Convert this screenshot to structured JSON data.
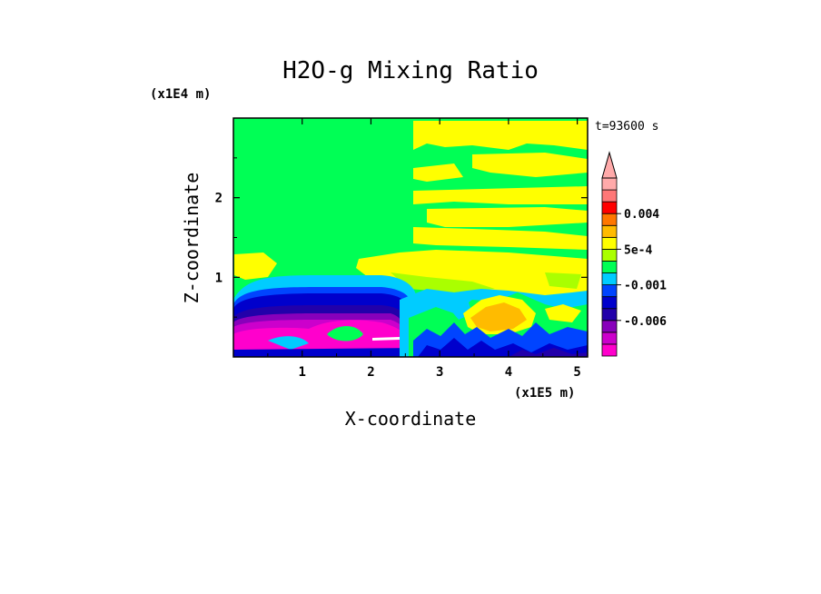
{
  "chart_data": {
    "type": "heatmap",
    "title": "H2O-g Mixing Ratio",
    "xlabel": "X-coordinate",
    "ylabel": "Z-coordinate",
    "x_scale_label": "(x1E5 m)",
    "y_scale_label": "(x1E4 m)",
    "time_label": "t=93600 s",
    "xlim": [
      0.0,
      5.15
    ],
    "ylim": [
      0.0,
      3.0
    ],
    "x_ticks": [
      1,
      2,
      3,
      4,
      5
    ],
    "y_ticks": [
      1,
      2
    ],
    "colorbar": {
      "levels": [
        "-0.01",
        "-0.008",
        "-0.006",
        "-0.004",
        "-0.002",
        "-0.001",
        "-5e-4",
        "0",
        "5e-4",
        "0.001",
        "0.002",
        "0.004",
        "0.006",
        "0.008"
      ],
      "labels": [
        {
          "text": "0.004",
          "value": 0.004
        },
        {
          "text": "5e-4",
          "value": 0.0005
        },
        {
          "text": "-0.001",
          "value": -0.001
        },
        {
          "text": "-0.006",
          "value": -0.006
        }
      ],
      "colors": [
        "#ff00cc",
        "#cc00cc",
        "#8800bb",
        "#2200aa",
        "#0000cc",
        "#0044ff",
        "#00ccff",
        "#00ff55",
        "#aaff00",
        "#ffff00",
        "#ffbb00",
        "#ff7700",
        "#ff0000",
        "#ff7777",
        "#ffaaaa"
      ],
      "extend": "max"
    },
    "dominant_field": "0 (green)"
  }
}
